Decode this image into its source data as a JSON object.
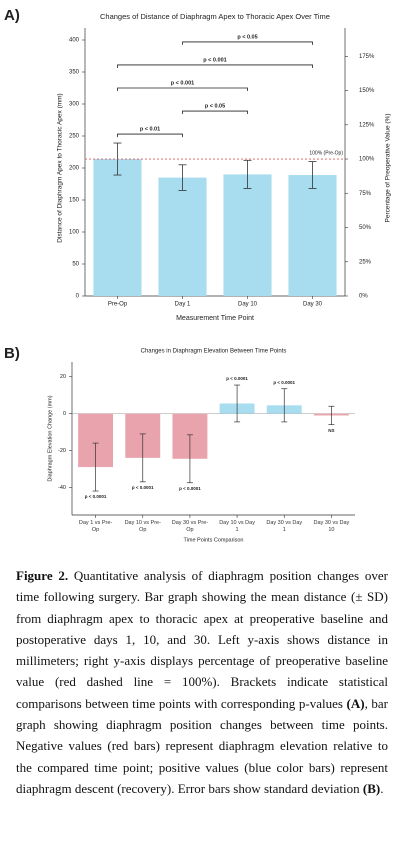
{
  "chart_data": [
    {
      "type": "bar",
      "panel": "A)",
      "title": "Changes of Distance of Diaphragm Apex to Thoracic Apex Over Time",
      "xlabel": "Measurement Time Point",
      "ylabel": "Distance of Diaphragm Apex to Thoracic Apex (mm)",
      "y2label": "Percentage of Preoperative Value (%)",
      "categories": [
        "Pre-Op",
        "Day 1",
        "Day 10",
        "Day 30"
      ],
      "values": [
        214,
        185,
        190,
        189
      ],
      "errors": [
        25,
        20,
        22,
        21
      ],
      "color": "#a8dcef",
      "ylim": [
        0,
        400
      ],
      "yticks": [
        0,
        50,
        100,
        150,
        200,
        250,
        300,
        350,
        400
      ],
      "y2lim": [
        0,
        186.9
      ],
      "y2ticks": [
        {
          "value": 0,
          "label": "0%"
        },
        {
          "value": 25,
          "label": "25%"
        },
        {
          "value": 50,
          "label": "50%"
        },
        {
          "value": 75,
          "label": "75%"
        },
        {
          "value": 100,
          "label": "100%"
        },
        {
          "value": 125,
          "label": "125%"
        },
        {
          "value": 150,
          "label": "150%"
        },
        {
          "value": 175,
          "label": "175%"
        }
      ],
      "reference": {
        "value": 214,
        "label": "100% (Pre-Op)",
        "color": "#e05a5a"
      },
      "annotations": [
        {
          "text": "p < 0.01",
          "from": 0,
          "to": 1
        },
        {
          "text": "p < 0.05",
          "from": 1,
          "to": 2
        },
        {
          "text": "p < 0.001",
          "from": 0,
          "to": 2
        },
        {
          "text": "p < 0.001",
          "from": 0,
          "to": 3
        },
        {
          "text": "p < 0.05",
          "from": 1,
          "to": 3
        }
      ]
    },
    {
      "type": "bar",
      "panel": "B)",
      "title": "Changes in Diaphragm Elevation Between Time Points",
      "xlabel": "Time Points Comparison",
      "ylabel": "Diaphragm Elevation Change (mm)",
      "categories": [
        "Day 1 vs Pre-Op",
        "Day 10 vs Pre-Op",
        "Day 30 vs Pre-Op",
        "Day 10 vs Day 1",
        "Day 30 vs Day 1",
        "Day 30 vs Day 10"
      ],
      "values": [
        -29,
        -24,
        -24.5,
        5.5,
        4.5,
        -1
      ],
      "errors": [
        13,
        13,
        13,
        10,
        9,
        5
      ],
      "colors": [
        "#e8a3ad",
        "#e8a3ad",
        "#e8a3ad",
        "#a8dcef",
        "#a8dcef",
        "#e8a3ad"
      ],
      "bar_labels": [
        "p < 0.0001",
        "p < 0.0001",
        "p < 0.0001",
        "p < 0.0001",
        "p < 0.0001",
        "NS"
      ],
      "ylim": [
        -55,
        28
      ],
      "yticks": [
        -40,
        -20,
        0,
        20
      ]
    }
  ],
  "caption": {
    "parts": [
      {
        "text": "Figure 2.",
        "bold": true
      },
      {
        "text": " Quantitative analysis of diaphragm position changes over time following surgery. Bar graph showing the mean distance (± SD) from diaphragm apex to thoracic apex at preoperative baseline and postoperative days 1, 10, and 30. Left y-axis shows distance in millimeters; right y-axis displays percentage of preoperative baseline value (red dashed line = 100%). Brackets indicate statistical comparisons between time points with corresponding p-values ",
        "bold": false
      },
      {
        "text": "(A)",
        "bold": true
      },
      {
        "text": ", bar graph showing diaphragm position changes between time points. Negative values (red bars) represent diaphragm elevation relative to the compared time point; positive values (blue color bars) represent diaphragm descent (recovery). Error bars show standard deviation ",
        "bold": false
      },
      {
        "text": "(B)",
        "bold": true
      },
      {
        "text": ".",
        "bold": false
      }
    ]
  }
}
